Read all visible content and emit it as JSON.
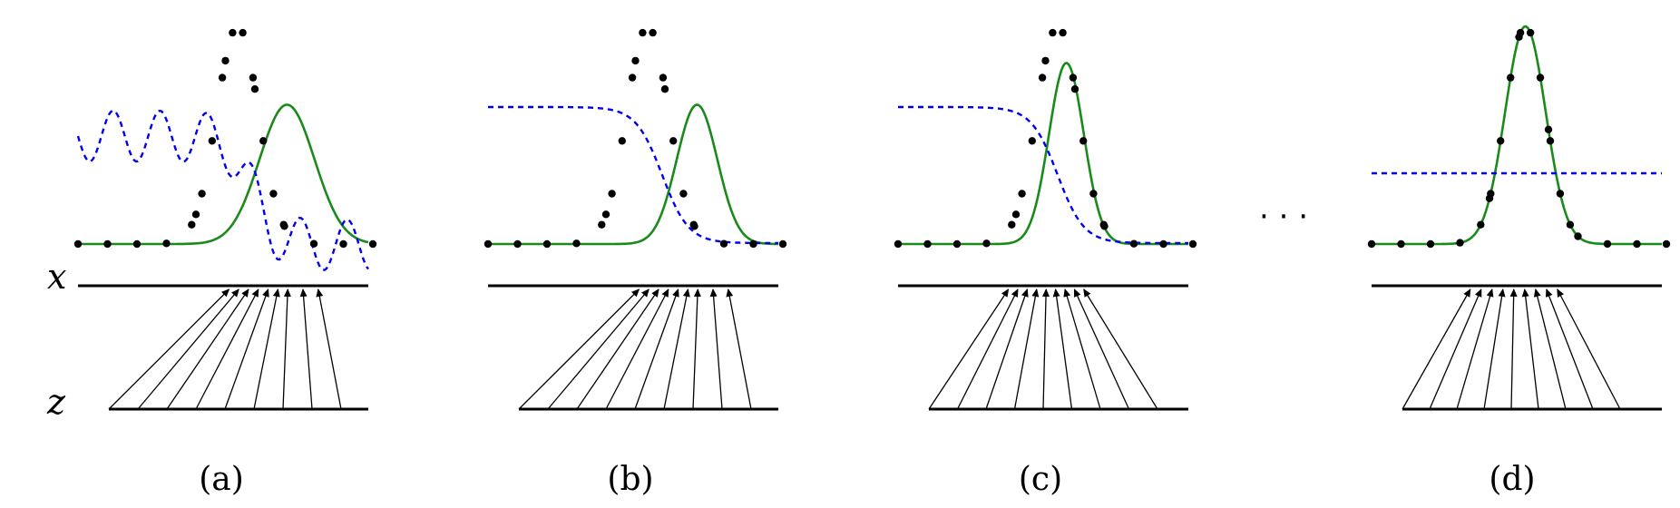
{
  "axis_labels": {
    "x": "x",
    "z": "z"
  },
  "ellipsis": "· · ·",
  "panels": [
    {
      "label": "(a)",
      "green_mu_frac": 0.72,
      "green_sigma_frac": 0.095,
      "green_height": 1.0,
      "blue": "wiggly",
      "mapping": "shifted"
    },
    {
      "label": "(b)",
      "green_mu_frac": 0.72,
      "green_sigma_frac": 0.07,
      "green_height": 1.0,
      "blue": "sigmoid",
      "mapping": "shifted"
    },
    {
      "label": "(c)",
      "green_mu_frac": 0.58,
      "green_sigma_frac": 0.06,
      "green_height": 1.3,
      "blue": "sigmoid",
      "mapping": "converging"
    },
    {
      "label": "(d)",
      "green_mu_frac": 0.53,
      "green_sigma_frac": 0.07,
      "green_height": 1.55,
      "blue": "flat",
      "mapping": "symmetric"
    }
  ],
  "colors": {
    "data": "#000000",
    "model": "#1a8a1a",
    "discriminator": "#0000ee",
    "lines": "#000000"
  }
}
